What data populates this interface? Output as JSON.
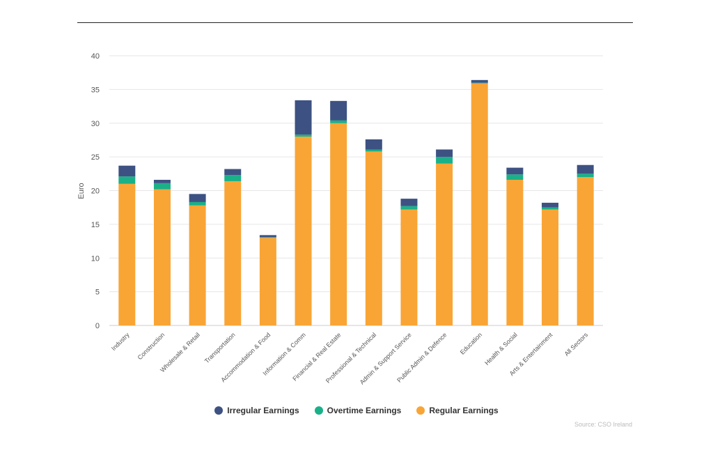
{
  "chart_data": {
    "type": "bar",
    "stacked": true,
    "ylabel": "Euro",
    "xlabel": "",
    "ylim": [
      0,
      40
    ],
    "yticks": [
      0,
      5,
      10,
      15,
      20,
      25,
      30,
      35,
      40
    ],
    "grid": true,
    "legend_position": "bottom-center",
    "categories": [
      "Industry",
      "Construction",
      "Wholesale & Retail",
      "Transportation",
      "Accommodation & Food",
      "Information & Comm",
      "Financial & Real Estate",
      "Professional & Technical",
      "Admin & Support Service",
      "Public Admin & Defence",
      "Education",
      "Health & Social",
      "Arts & Entertainment",
      "All Sectors"
    ],
    "series": [
      {
        "name": "Regular Earnings",
        "color": "#f9a535",
        "values": [
          21.0,
          20.2,
          17.8,
          21.4,
          13.0,
          28.0,
          30.0,
          25.8,
          17.2,
          24.0,
          35.9,
          21.6,
          17.2,
          22.0
        ]
      },
      {
        "name": "Overtime Earnings",
        "color": "#1ab188",
        "values": [
          1.1,
          0.9,
          0.5,
          0.9,
          0.1,
          0.3,
          0.4,
          0.3,
          0.5,
          1.0,
          0.1,
          0.8,
          0.3,
          0.5
        ]
      },
      {
        "name": "Irregular Earnings",
        "color": "#3d5282",
        "values": [
          1.6,
          0.5,
          1.2,
          0.9,
          0.3,
          5.1,
          2.9,
          1.5,
          1.1,
          1.1,
          0.4,
          1.0,
          0.7,
          1.3
        ]
      }
    ],
    "legend_order": [
      "Irregular Earnings",
      "Overtime Earnings",
      "Regular Earnings"
    ],
    "source": "Source: CSO Ireland"
  }
}
